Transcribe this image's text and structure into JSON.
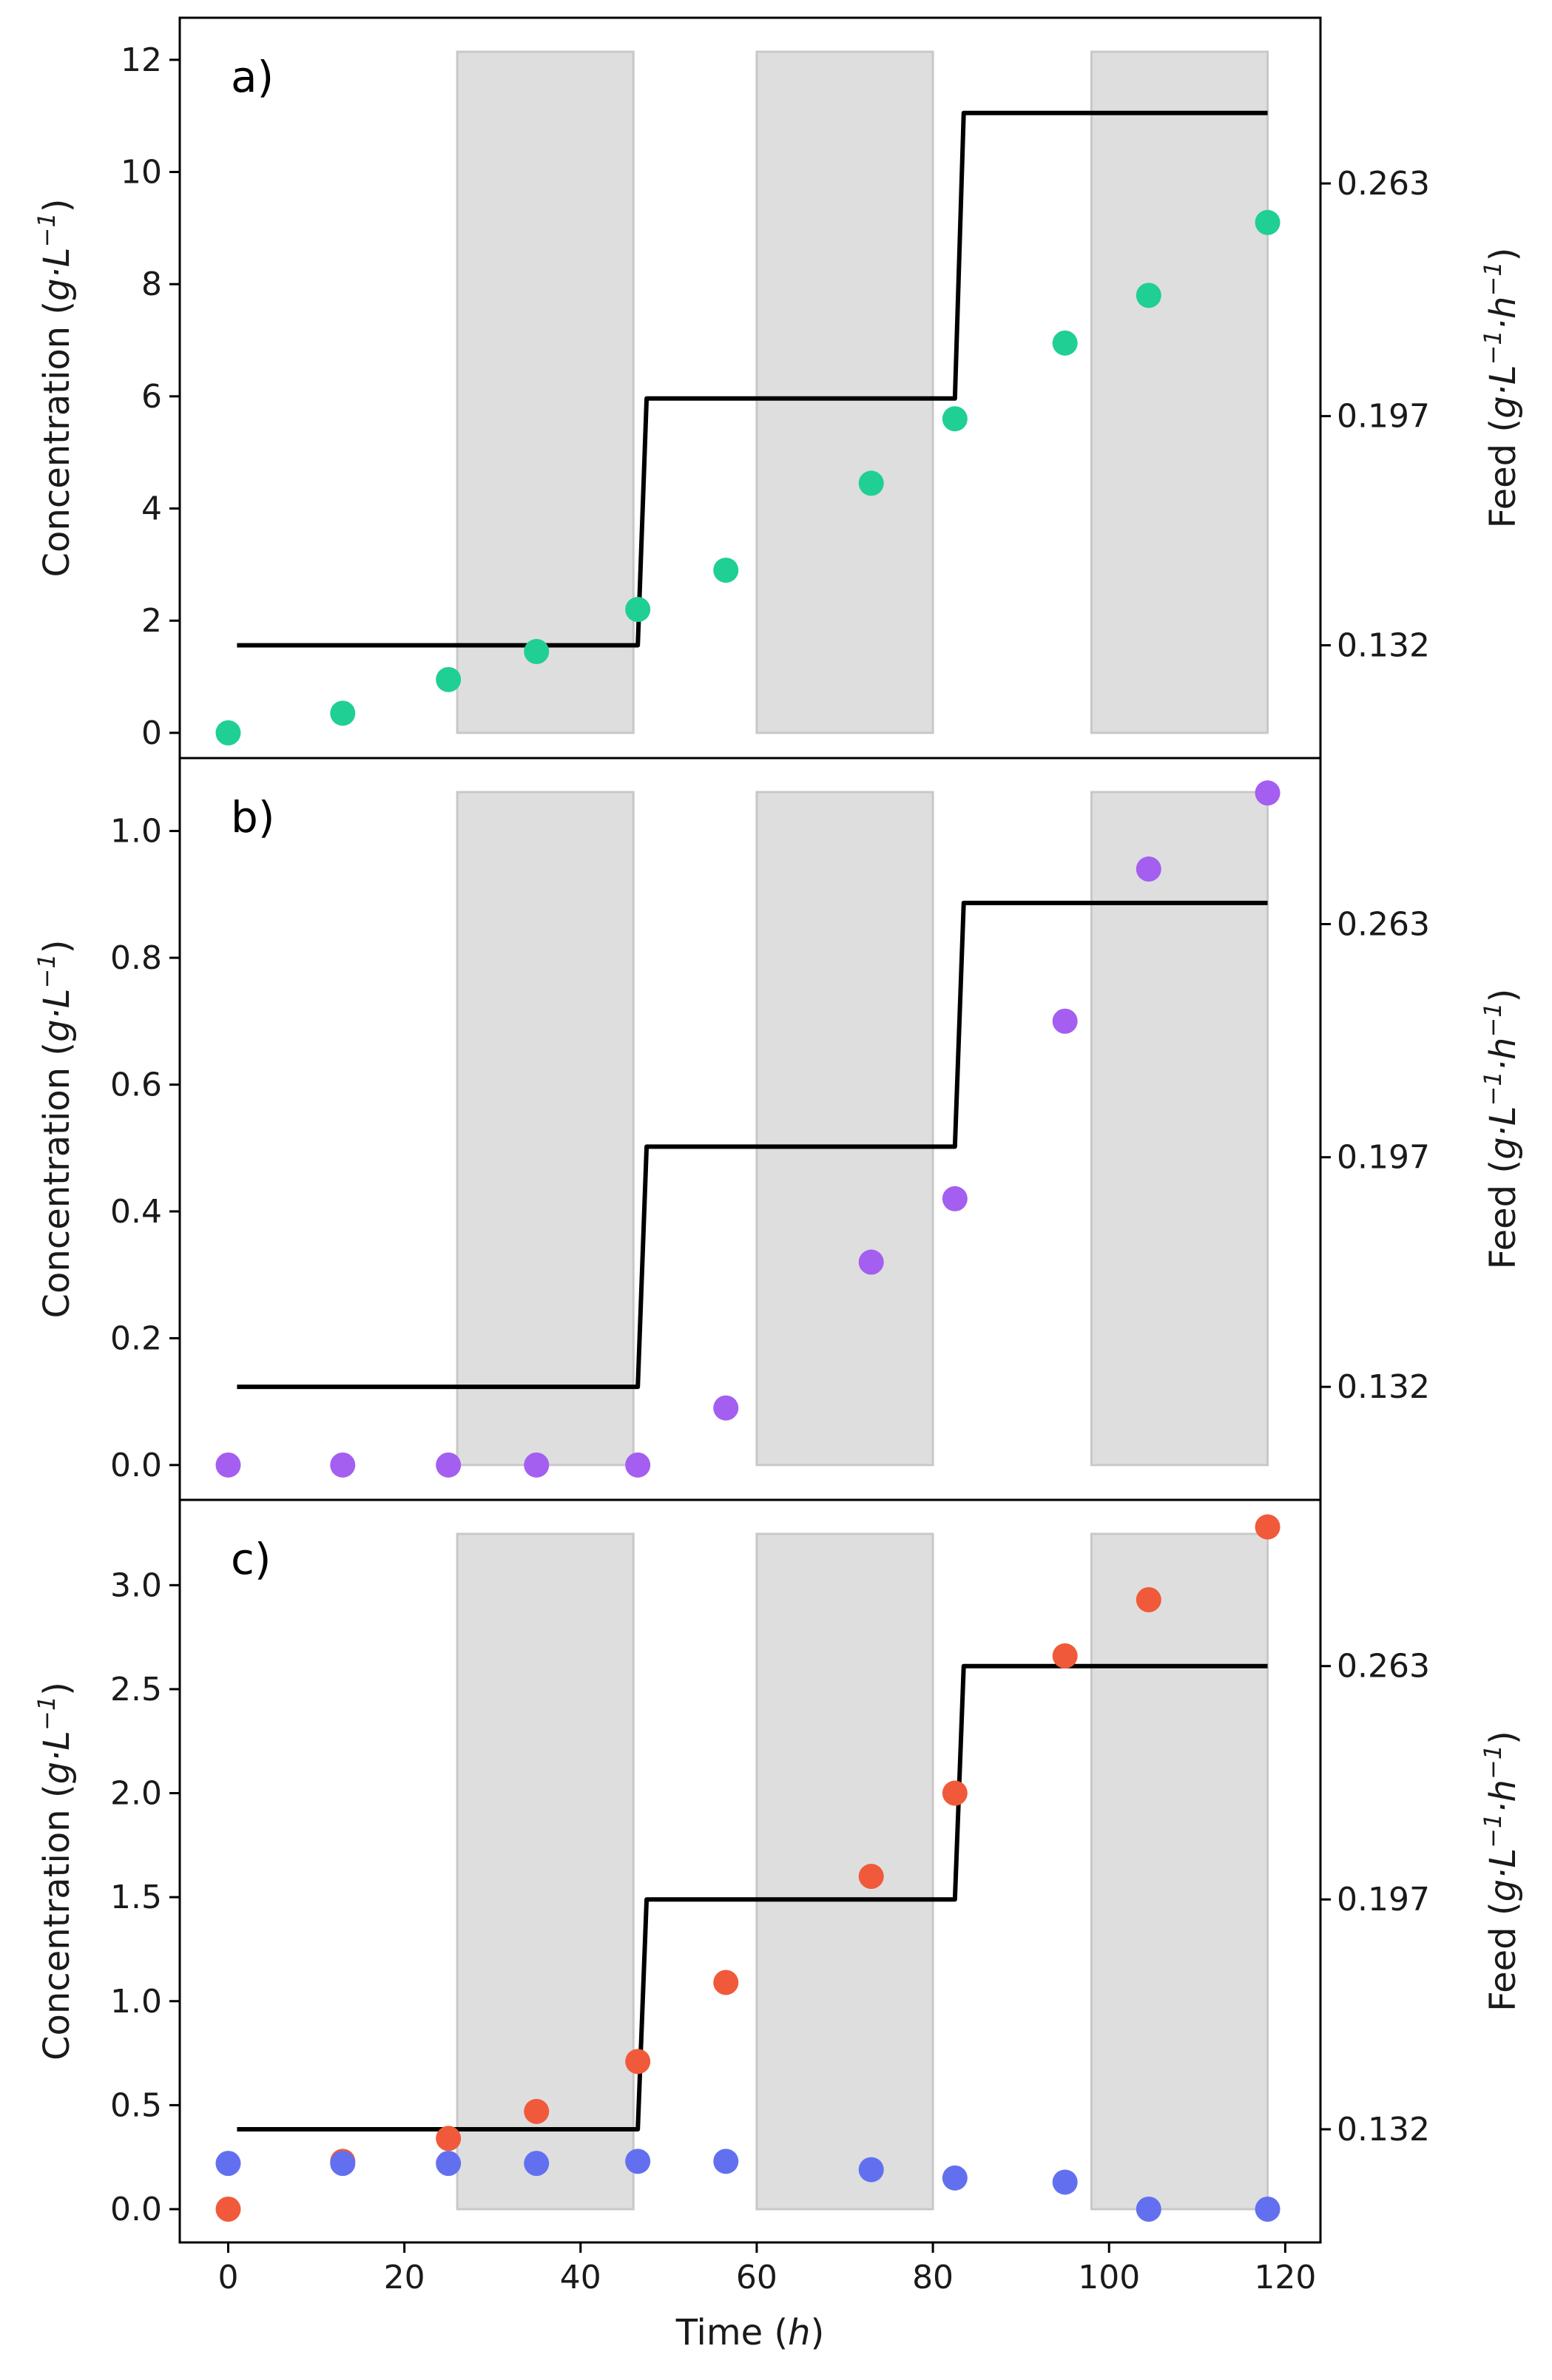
{
  "chart_data": [
    {
      "panel": "a)",
      "type": "scatter",
      "ylabel_main": "Concentration (",
      "ylabel_unit": "g·L",
      "ylabel_sup": "−1",
      "ylabel_end": ")",
      "y2label_main": "Feed (",
      "y2label_unit": "g·L",
      "y2label_sup": "−1",
      "y2label_mid": "·h",
      "y2label_sup2": "−1",
      "y2label_end": ")",
      "ylim": [
        -0.45,
        12.75
      ],
      "yticks": [
        0,
        2,
        4,
        6,
        8,
        10,
        12
      ],
      "ytick_labels": [
        "0",
        "2",
        "4",
        "6",
        "8",
        "10",
        "12"
      ],
      "y2ticks": [
        0.132,
        0.197,
        0.263
      ],
      "y2tick_labels": [
        "0.132",
        "0.197",
        "0.263"
      ],
      "series": [
        {
          "name": "scatter-1",
          "color": "#1fcf94",
          "x": [
            0,
            13,
            25,
            35,
            46.5,
            56.5,
            73,
            82.5,
            95,
            104.5,
            118
          ],
          "values": [
            0.0,
            0.35,
            0.95,
            1.45,
            2.2,
            2.9,
            4.45,
            5.6,
            6.95,
            7.8,
            9.1
          ]
        }
      ],
      "feed": {
        "x": [
          1,
          46.5,
          47.5,
          82.5,
          83.5,
          118
        ],
        "values": [
          0.132,
          0.132,
          0.202,
          0.202,
          0.283,
          0.283
        ]
      }
    },
    {
      "panel": "b)",
      "type": "scatter",
      "ylabel_main": "Concentration (",
      "ylabel_unit": "g·L",
      "ylabel_sup": "−1",
      "ylabel_end": ")",
      "y2label_main": "Feed (",
      "y2label_unit": "g·L",
      "y2label_sup": "−1",
      "y2label_mid": "·h",
      "y2label_sup2": "−1",
      "y2label_end": ")",
      "ylim": [
        -0.055,
        1.115
      ],
      "yticks": [
        0.0,
        0.2,
        0.4,
        0.6,
        0.8,
        1.0
      ],
      "ytick_labels": [
        "0.0",
        "0.2",
        "0.4",
        "0.6",
        "0.8",
        "1.0"
      ],
      "y2ticks": [
        0.132,
        0.197,
        0.263
      ],
      "y2tick_labels": [
        "0.132",
        "0.197",
        "0.263"
      ],
      "series": [
        {
          "name": "scatter-1",
          "color": "#a45ef0",
          "x": [
            0,
            13,
            25,
            35,
            46.5,
            56.5,
            73,
            82.5,
            95,
            104.5,
            118
          ],
          "values": [
            0.0,
            0.0,
            0.0,
            0.0,
            0.0,
            0.09,
            0.32,
            0.42,
            0.7,
            0.94,
            1.06
          ]
        }
      ],
      "feed": {
        "x": [
          1,
          46.5,
          47.5,
          82.5,
          83.5,
          118
        ],
        "values": [
          0.132,
          0.132,
          0.2,
          0.2,
          0.269,
          0.269
        ]
      }
    },
    {
      "panel": "c)",
      "type": "scatter",
      "xlabel_main": "Time (",
      "xlabel_unit": "h",
      "xlabel_end": ")",
      "xticks": [
        0,
        20,
        40,
        60,
        80,
        100,
        120
      ],
      "xtick_labels": [
        "0",
        "20",
        "40",
        "60",
        "80",
        "100",
        "120"
      ],
      "ylabel_main": "Concentration (",
      "ylabel_unit": "g·L",
      "ylabel_sup": "−1",
      "ylabel_end": ")",
      "y2label_main": "Feed (",
      "y2label_unit": "g·L",
      "y2label_sup": "−1",
      "y2label_mid": "·h",
      "y2label_sup2": "−1",
      "y2label_end": ")",
      "ylim": [
        -0.16,
        3.41
      ],
      "yticks": [
        0.0,
        0.5,
        1.0,
        1.5,
        2.0,
        2.5,
        3.0
      ],
      "ytick_labels": [
        "0.0",
        "0.5",
        "1.0",
        "1.5",
        "2.0",
        "2.5",
        "3.0"
      ],
      "y2ticks": [
        0.132,
        0.197,
        0.263
      ],
      "y2tick_labels": [
        "0.132",
        "0.197",
        "0.263"
      ],
      "series": [
        {
          "name": "scatter-1",
          "color": "#f05a3a",
          "x": [
            0,
            13,
            25,
            35,
            46.5,
            56.5,
            73,
            82.5,
            95,
            104.5,
            118
          ],
          "values": [
            0.0,
            0.23,
            0.34,
            0.47,
            0.71,
            1.09,
            1.6,
            2.0,
            2.66,
            2.93,
            3.28
          ]
        },
        {
          "name": "scatter-2",
          "color": "#6270f0",
          "x": [
            0,
            13,
            25,
            35,
            46.5,
            56.5,
            73,
            82.5,
            95,
            104.5,
            118
          ],
          "values": [
            0.22,
            0.22,
            0.22,
            0.22,
            0.23,
            0.23,
            0.19,
            0.15,
            0.13,
            0.0,
            0.0
          ]
        }
      ],
      "feed": {
        "x": [
          1,
          46.5,
          47.5,
          82.5,
          83.5,
          118
        ],
        "values": [
          0.132,
          0.132,
          0.197,
          0.197,
          0.263,
          0.263
        ]
      }
    }
  ],
  "shared": {
    "xlim": [
      -5.5,
      124
    ],
    "y2lim": [
      0.1,
      0.31
    ],
    "shaded_regions": [
      [
        26,
        46
      ],
      [
        60,
        80
      ],
      [
        98,
        118
      ]
    ],
    "shade_color": "#dedede",
    "line_color": "#000000"
  }
}
